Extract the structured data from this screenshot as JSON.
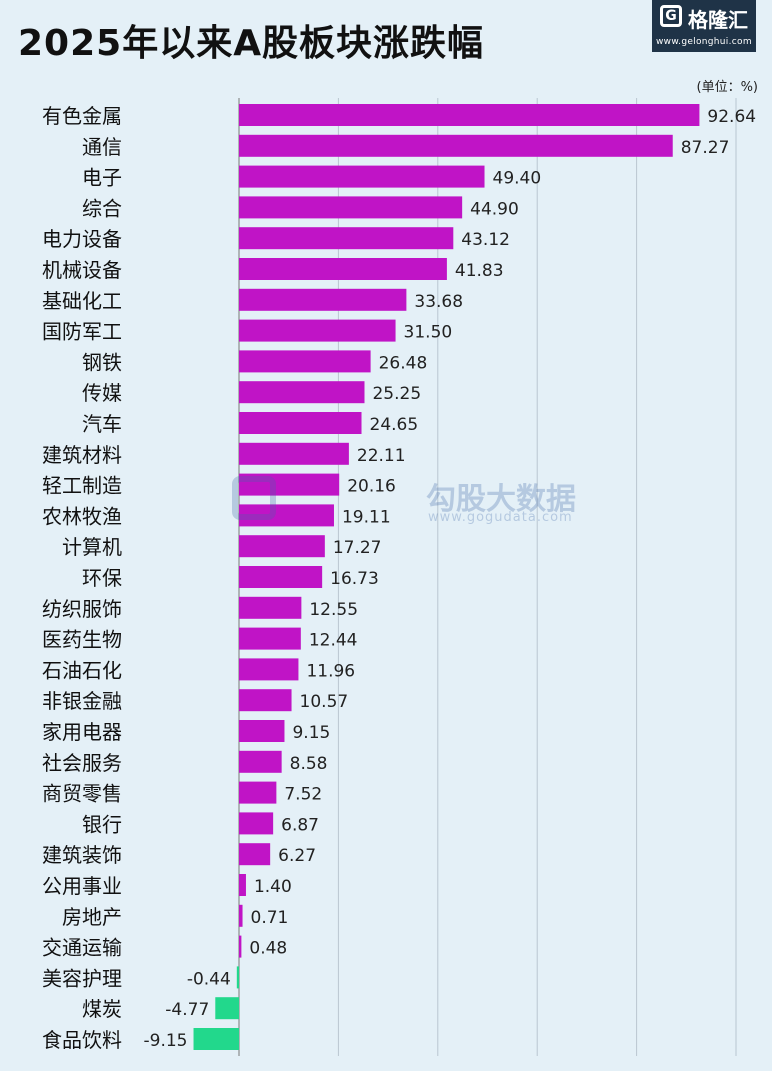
{
  "header": {
    "title": "2025年以来A股板块涨跌幅",
    "unit": "(单位：%)"
  },
  "logo": {
    "name": "格隆汇",
    "url": "www.gelonghui.com"
  },
  "watermark": {
    "name": "勾股大数据",
    "url": "www.gogudata.com"
  },
  "colors": {
    "positive": "#c014c6",
    "negative": "#22d88c",
    "background": "#e4f0f7"
  },
  "chart_data": {
    "type": "bar",
    "orientation": "horizontal",
    "title": "2025年以来A股板块涨跌幅",
    "unit": "(单位：%)",
    "xlim": [
      -10,
      100
    ],
    "grid": true,
    "categories": [
      "有色金属",
      "通信",
      "电子",
      "综合",
      "电力设备",
      "机械设备",
      "基础化工",
      "国防军工",
      "钢铁",
      "传媒",
      "汽车",
      "建筑材料",
      "轻工制造",
      "农林牧渔",
      "计算机",
      "环保",
      "纺织服饰",
      "医药生物",
      "石油石化",
      "非银金融",
      "家用电器",
      "社会服务",
      "商贸零售",
      "银行",
      "建筑装饰",
      "公用事业",
      "房地产",
      "交通运输",
      "美容护理",
      "煤炭",
      "食品饮料"
    ],
    "values": [
      92.64,
      87.27,
      49.4,
      44.9,
      43.12,
      41.83,
      33.68,
      31.5,
      26.48,
      25.25,
      24.65,
      22.11,
      20.16,
      19.11,
      17.27,
      16.73,
      12.55,
      12.44,
      11.96,
      10.57,
      9.15,
      8.58,
      7.52,
      6.87,
      6.27,
      1.4,
      0.71,
      0.48,
      -0.44,
      -4.77,
      -9.15
    ],
    "labels": [
      "92.64",
      "87.27",
      "49.40",
      "44.90",
      "43.12",
      "41.83",
      "33.68",
      "31.50",
      "26.48",
      "25.25",
      "24.65",
      "22.11",
      "20.16",
      "19.11",
      "17.27",
      "16.73",
      "12.55",
      "12.44",
      "11.96",
      "10.57",
      "9.15",
      "8.58",
      "7.52",
      "6.87",
      "6.27",
      "1.40",
      "0.71",
      "0.48",
      "-0.44",
      "-4.77",
      "-9.15"
    ]
  }
}
